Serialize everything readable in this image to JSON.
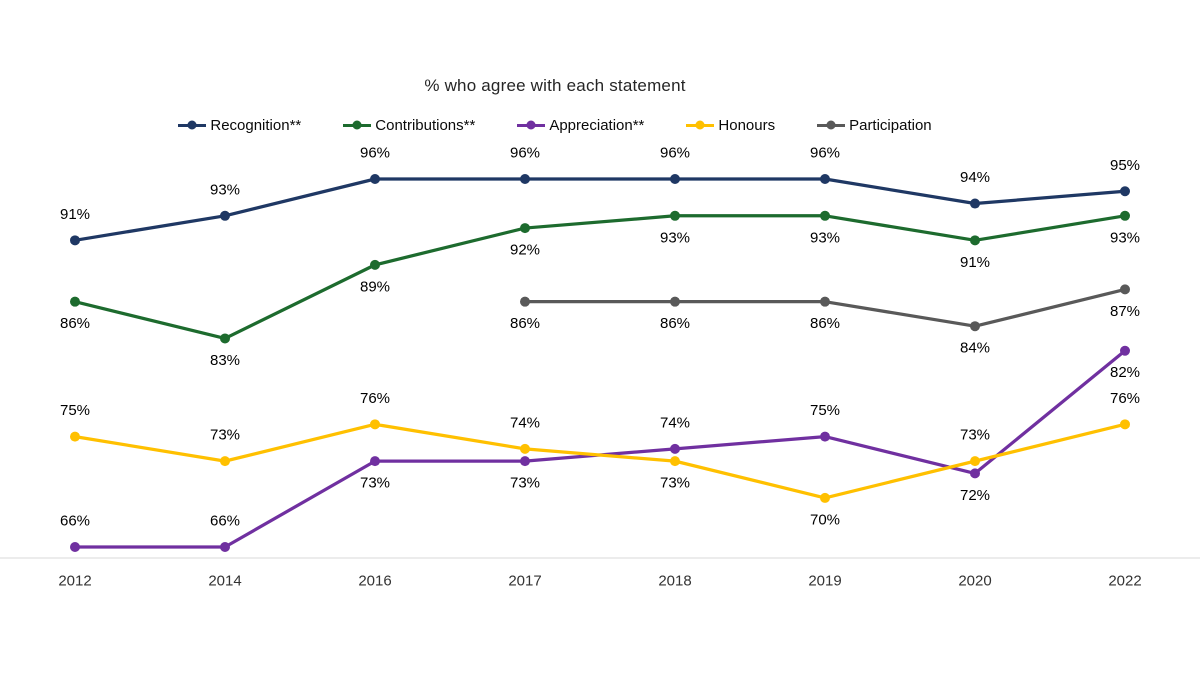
{
  "chart_data": {
    "type": "line",
    "title": "% who agree with each statement",
    "categories": [
      "2012",
      "2014",
      "2016",
      "2017",
      "2018",
      "2019",
      "2020",
      "2022"
    ],
    "series": [
      {
        "name": "Recognition**",
        "color": "#1f3864",
        "values": [
          91,
          93,
          96,
          96,
          96,
          96,
          94,
          95
        ],
        "label_side": [
          "above",
          "above",
          "above",
          "above",
          "above",
          "above",
          "above",
          "above"
        ]
      },
      {
        "name": "Contributions**",
        "color": "#1d6b2e",
        "values": [
          86,
          83,
          89,
          92,
          93,
          93,
          91,
          93
        ],
        "label_side": [
          "below",
          "below",
          "below",
          "below",
          "below",
          "below",
          "below",
          "below"
        ]
      },
      {
        "name": "Appreciation**",
        "color": "#7030a0",
        "values": [
          66,
          66,
          73,
          73,
          74,
          75,
          72,
          82
        ],
        "label_side": [
          "above",
          "above",
          "below",
          "below",
          "above",
          "above",
          "below",
          "below"
        ]
      },
      {
        "name": "Honours",
        "color": "#ffc000",
        "values": [
          75,
          73,
          76,
          74,
          73,
          70,
          73,
          76
        ],
        "label_side": [
          "above",
          "above",
          "above",
          "above",
          "below",
          "below",
          "above",
          "above"
        ]
      },
      {
        "name": "Participation",
        "color": "#595959",
        "values": [
          null,
          null,
          null,
          86,
          86,
          86,
          84,
          87
        ],
        "label_side": [
          null,
          null,
          null,
          "below",
          "below",
          "below",
          "below",
          "below"
        ]
      }
    ],
    "value_suffix": "%",
    "ylim": [
      65,
      100
    ],
    "grid": false,
    "legend_position": "top",
    "axis_color": "#d9d9d9",
    "tick_label_color": "#333333",
    "data_label_color": "#000000"
  }
}
